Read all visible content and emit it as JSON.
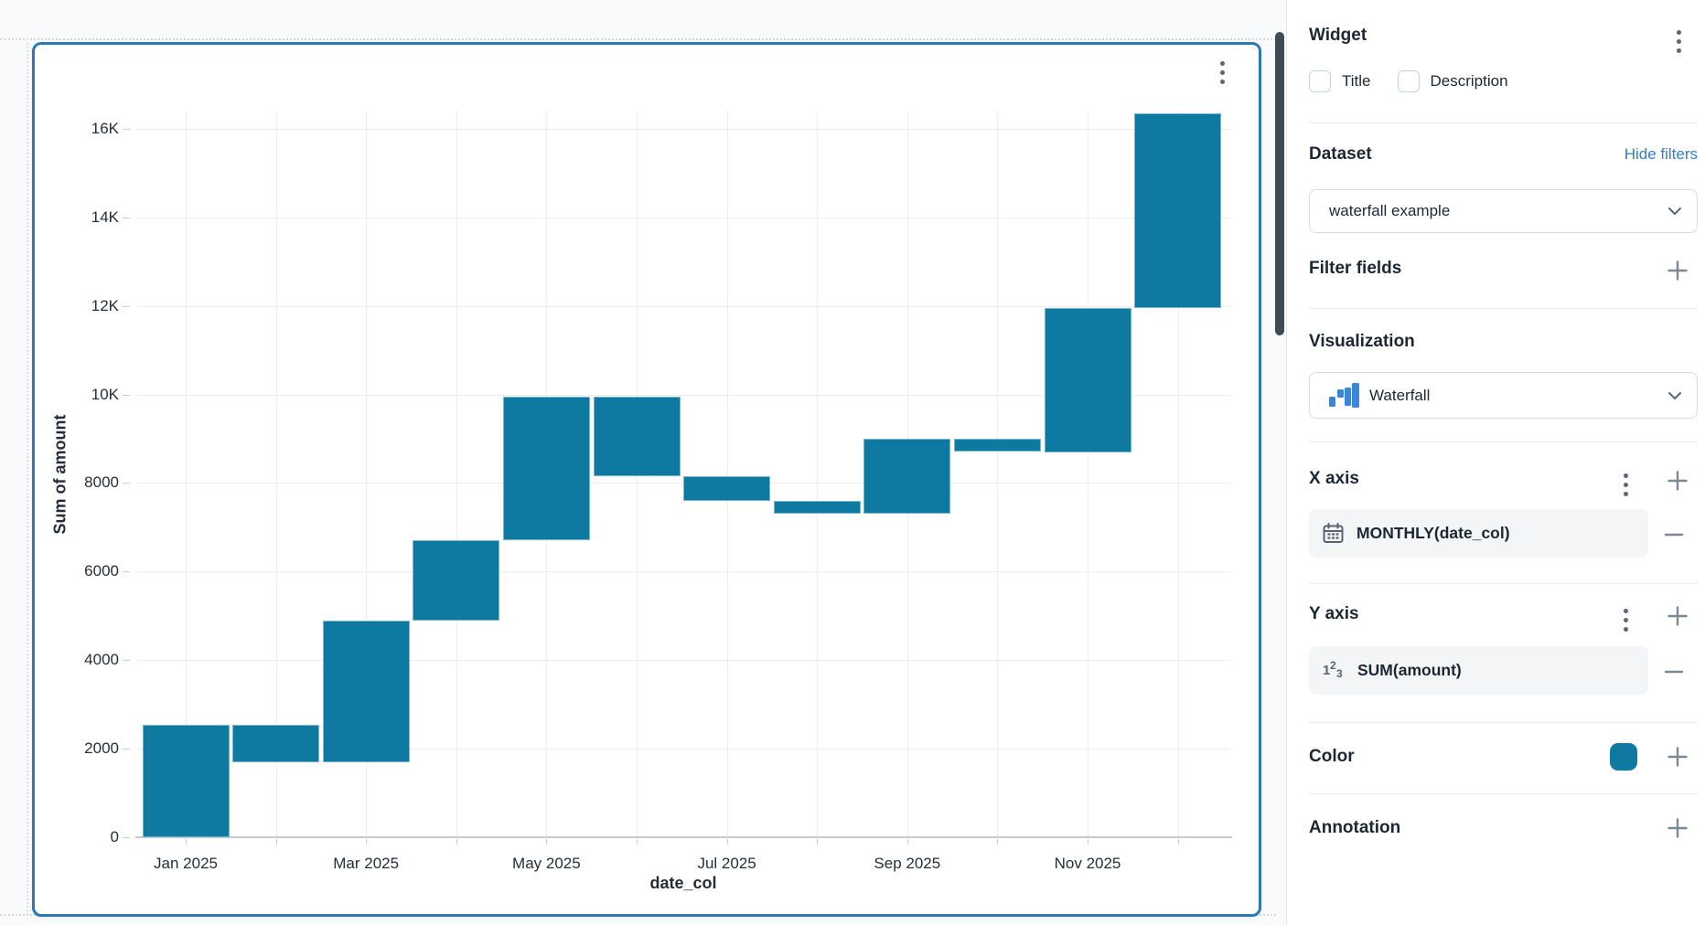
{
  "chart_data": {
    "type": "waterfall",
    "title": "",
    "xlabel": "date_col",
    "ylabel": "Sum of amount",
    "bar_color": "#0e7aa1",
    "ylim": [
      0,
      16700
    ],
    "y_ticks": [
      {
        "value": 0,
        "label": "0"
      },
      {
        "value": 2000,
        "label": "2000"
      },
      {
        "value": 4000,
        "label": "4000"
      },
      {
        "value": 6000,
        "label": "6000"
      },
      {
        "value": 8000,
        "label": "8000"
      },
      {
        "value": 10000,
        "label": "10K"
      },
      {
        "value": 12000,
        "label": "12K"
      },
      {
        "value": 14000,
        "label": "14K"
      },
      {
        "value": 16000,
        "label": "16K"
      }
    ],
    "x_tick_labels": [
      {
        "month_index": 0,
        "label": "Jan 2025"
      },
      {
        "month_index": 2,
        "label": "Mar 2025"
      },
      {
        "month_index": 4,
        "label": "May 2025"
      },
      {
        "month_index": 6,
        "label": "Jul 2025"
      },
      {
        "month_index": 8,
        "label": "Sep 2025"
      },
      {
        "month_index": 10,
        "label": "Nov 2025"
      }
    ],
    "series": [
      {
        "label": "Jan 2025",
        "start": 0,
        "end": 2550,
        "change": 2550
      },
      {
        "label": "Feb 2025",
        "start": 2550,
        "end": 1700,
        "change": -850
      },
      {
        "label": "Mar 2025",
        "start": 1700,
        "end": 4900,
        "change": 3200
      },
      {
        "label": "Apr 2025",
        "start": 4900,
        "end": 6700,
        "change": 1800
      },
      {
        "label": "May 2025",
        "start": 6700,
        "end": 9950,
        "change": 3250
      },
      {
        "label": "Jun 2025",
        "start": 9950,
        "end": 8150,
        "change": -1800
      },
      {
        "label": "Jul 2025",
        "start": 8150,
        "end": 7600,
        "change": -550
      },
      {
        "label": "Aug 2025",
        "start": 7600,
        "end": 7300,
        "change": -300
      },
      {
        "label": "Sep 2025",
        "start": 7300,
        "end": 9000,
        "change": 1700
      },
      {
        "label": "Oct 2025",
        "start": 9000,
        "end": 8700,
        "change": -300
      },
      {
        "label": "Nov 2025",
        "start": 8700,
        "end": 11950,
        "change": 3250
      },
      {
        "label": "Dec 2025",
        "start": 11950,
        "end": 16350,
        "change": 4400
      }
    ]
  },
  "panel": {
    "widget": {
      "title": "Widget"
    },
    "checkboxes": [
      {
        "label": "Title",
        "checked": false
      },
      {
        "label": "Description",
        "checked": false
      }
    ],
    "dataset": {
      "label": "Dataset",
      "link": "Hide filters",
      "selected": "waterfall example"
    },
    "filter_fields": {
      "label": "Filter fields"
    },
    "visualization": {
      "label": "Visualization",
      "selected": "Waterfall"
    },
    "x_axis": {
      "label": "X axis",
      "field": "MONTHLY(date_col)"
    },
    "y_axis": {
      "label": "Y axis",
      "field": "SUM(amount)"
    },
    "color": {
      "label": "Color",
      "value": "#0e7aa1"
    },
    "annotation": {
      "label": "Annotation"
    }
  }
}
